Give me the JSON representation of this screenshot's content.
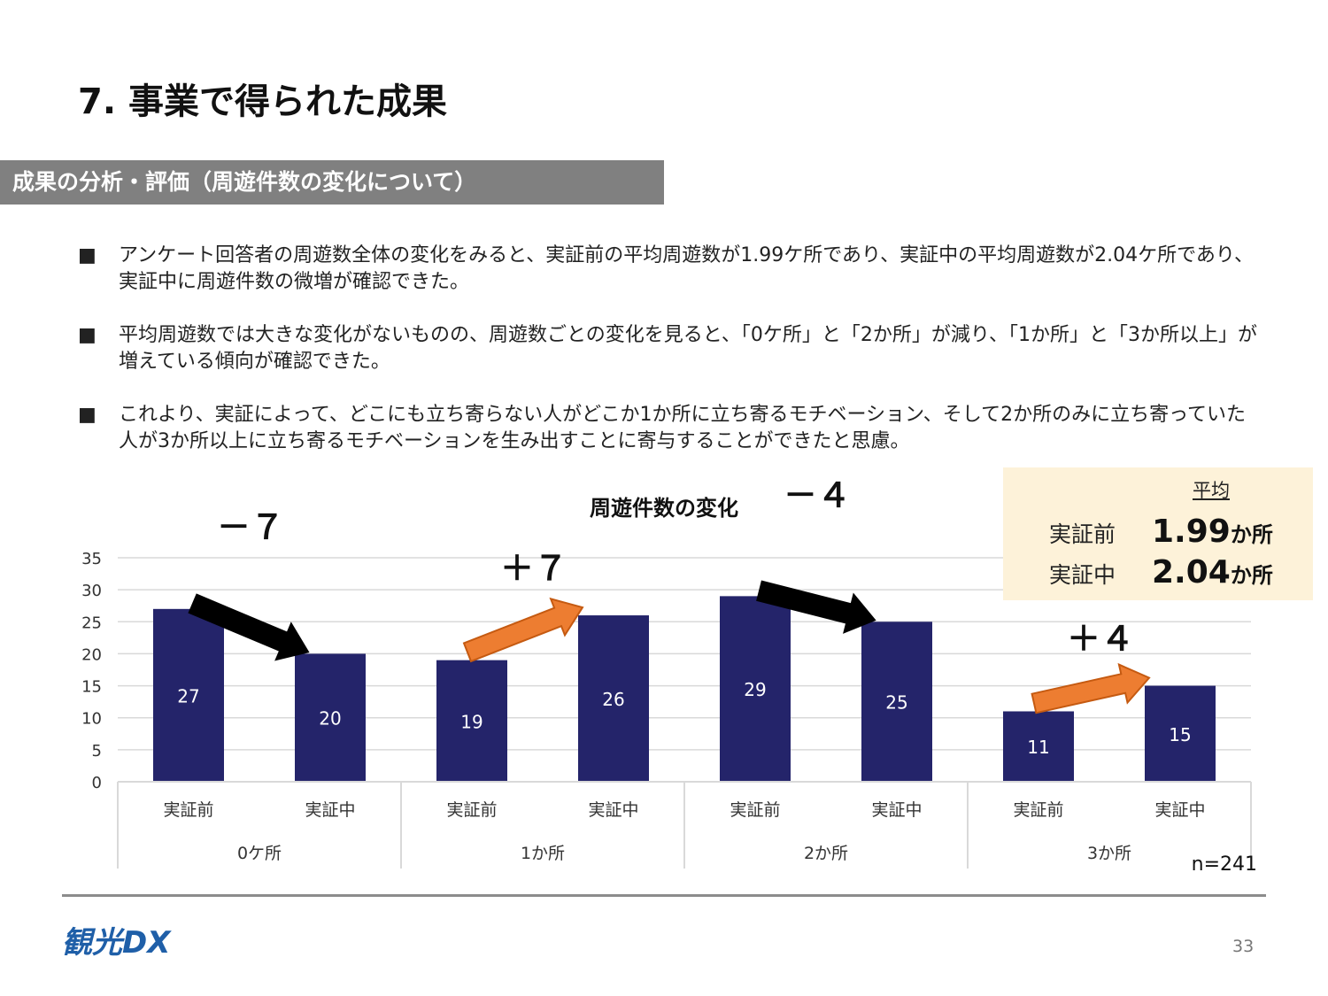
{
  "page": {
    "title": "7. 事業で得られた成果",
    "page_number": "33"
  },
  "section": {
    "banner": "成果の分析・評価（周遊件数の変化について）"
  },
  "bullets": [
    {
      "mark": "■",
      "text": "アンケート回答者の周遊数全体の変化をみると、実証前の平均周遊数が1.99ケ所であり、実証中の平均周遊数が2.04ケ所であり、実証中に周遊件数の微増が確認できた。"
    },
    {
      "mark": "■",
      "text": "平均周遊数では大きな変化がないものの、周遊数ごとの変化を見ると、「0ケ所」と「2か所」が減り、「1か所」と「3か所以上」が増えている傾向が確認できた。"
    },
    {
      "mark": "■",
      "text": "これより、実証によって、どこにも立ち寄らない人がどこか1か所に立ち寄るモチベーション、そして2か所のみに立ち寄っていた人が3か所以上に立ち寄るモチベーションを生み出すことに寄与することができたと思慮。"
    }
  ],
  "average_box": {
    "header": "平均",
    "rows": [
      {
        "label": "実証前",
        "value": "1.99",
        "unit": "か所"
      },
      {
        "label": "実証中",
        "value": "2.04",
        "unit": "か所"
      }
    ]
  },
  "chart_data": {
    "type": "bar",
    "title": "周遊件数の変化",
    "groups": [
      "0ケ所",
      "1か所",
      "2か所",
      "3か所"
    ],
    "categories": [
      "実証前",
      "実証中",
      "実証前",
      "実証中",
      "実証前",
      "実証中",
      "実証前",
      "実証中"
    ],
    "values": [
      27,
      20,
      19,
      26,
      29,
      25,
      11,
      15
    ],
    "ylim": [
      0,
      35
    ],
    "yticks": [
      0,
      5,
      10,
      15,
      20,
      25,
      30,
      35
    ],
    "grid": true,
    "xlabel": "",
    "ylabel": "",
    "annotations": [
      "－７",
      "＋７",
      "－４",
      "＋４"
    ],
    "arrow_directions": [
      "down",
      "up",
      "down",
      "up"
    ],
    "note": "n=241"
  },
  "colors": {
    "bar": "#24246a",
    "arrow_down": "#000000",
    "arrow_up": "#ed7d31",
    "grid": "#d9d9d9",
    "banner": "#808080",
    "avg_box": "#fdf2d9"
  },
  "logo": {
    "text": "観光DX"
  }
}
